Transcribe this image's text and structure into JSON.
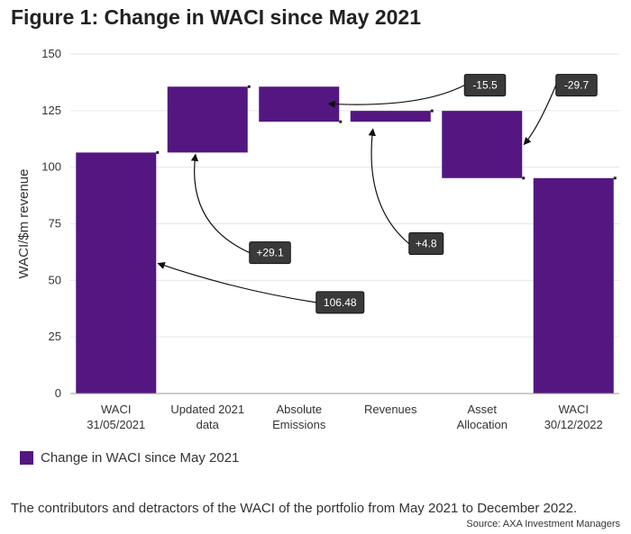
{
  "title": "Figure 1: Change in WACI since May 2021",
  "chart_data": {
    "type": "bar",
    "subtype": "waterfall",
    "ylabel": "WACI/$m revenue",
    "xlabel": "",
    "ylim": [
      0,
      150
    ],
    "yticks": [
      0,
      25,
      50,
      75,
      100,
      125,
      150
    ],
    "grid": true,
    "categories": [
      [
        "WACI",
        "31/05/2021"
      ],
      [
        "Updated 2021",
        "data"
      ],
      [
        "Absolute",
        "Emissions"
      ],
      [
        "Revenues"
      ],
      [
        "Asset",
        "Allocation"
      ],
      [
        "WACI",
        "30/12/2022"
      ]
    ],
    "bars": [
      {
        "start": 0,
        "end": 106.48
      },
      {
        "start": 106.48,
        "end": 135.58
      },
      {
        "start": 135.58,
        "end": 120.08
      },
      {
        "start": 120.08,
        "end": 124.88
      },
      {
        "start": 124.88,
        "end": 95.18
      },
      {
        "start": 0,
        "end": 95.18
      }
    ],
    "color": "#541680",
    "callouts": [
      {
        "text": "106.48",
        "bar": 0
      },
      {
        "text": "+29.1",
        "bar": 1
      },
      {
        "text": "-15.5",
        "bar": 2
      },
      {
        "text": "+4.8",
        "bar": 3
      },
      {
        "text": "-29.7",
        "bar": 4
      }
    ],
    "legend": {
      "label": "Change in WACI since May 2021",
      "position": "bottom-left"
    }
  },
  "caption": "The contributors and detractors of the WACI of the portfolio from May 2021 to December 2022.",
  "source": "Source: AXA Investment Managers"
}
